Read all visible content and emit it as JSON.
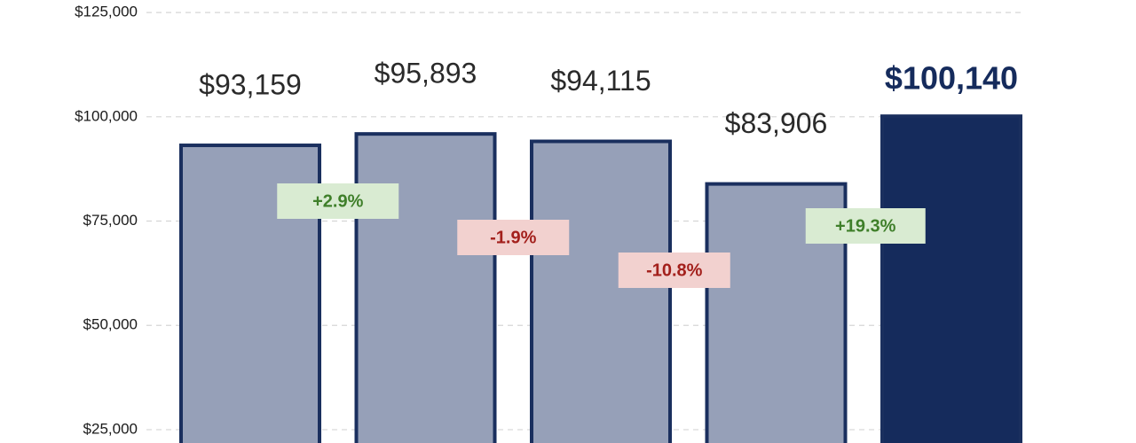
{
  "chart_data": {
    "type": "bar",
    "categories": [
      null,
      null,
      null,
      null,
      null
    ],
    "values": [
      93159,
      95893,
      94115,
      83906,
      100140
    ],
    "value_labels": [
      "$93,159",
      "$95,893",
      "$94,115",
      "$83,906",
      "$100,140"
    ],
    "colors": [
      "#96a0b8",
      "#96a0b8",
      "#96a0b8",
      "#96a0b8",
      "#152b5c"
    ],
    "edge_color": "#1a2f5e",
    "changes": {
      "values": [
        2.9,
        -1.9,
        -10.8,
        19.3
      ],
      "value_labels": [
        "+2.9%",
        "-1.9%",
        "-10.8%",
        "+19.3%"
      ],
      "positive_color": "#3f7f2a",
      "positive_background": "#d9ebd2",
      "negative_color": "#a3201c",
      "negative_background": "#f2d1cf"
    },
    "ylim": [
      21800,
      128000
    ],
    "yticks": [
      {
        "value": 25000,
        "label": "$25,000"
      },
      {
        "value": 50000,
        "label": "$50,000"
      },
      {
        "value": 75000,
        "label": "$75,000"
      },
      {
        "value": 100000,
        "label": "$100,000"
      },
      {
        "value": 125000,
        "label": "$125,000"
      }
    ],
    "grid": true
  }
}
